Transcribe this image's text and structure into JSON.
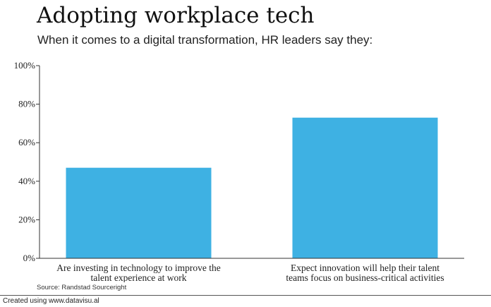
{
  "footer": {
    "text": "Created using www.datavisu.al"
  },
  "chart_data": {
    "type": "bar",
    "title": "Adopting workplace tech",
    "subtitle": "When it comes to a digital transformation, HR leaders say they:",
    "categories": [
      [
        "Are investing in technology to improve the",
        "talent experience at work"
      ],
      [
        "Expect innovation will help their talent",
        "teams focus on business-critical activities"
      ]
    ],
    "values": [
      47,
      73
    ],
    "ylim": [
      0,
      100
    ],
    "yticks": [
      0,
      20,
      40,
      60,
      80,
      100
    ],
    "ytick_labels": [
      "0%",
      "20%",
      "40%",
      "60%",
      "80%",
      "100%"
    ],
    "xlabel": "",
    "ylabel": "",
    "grid": false,
    "bar_color": "#3eb1e3",
    "source": "Source: Randstad Sourceright"
  }
}
